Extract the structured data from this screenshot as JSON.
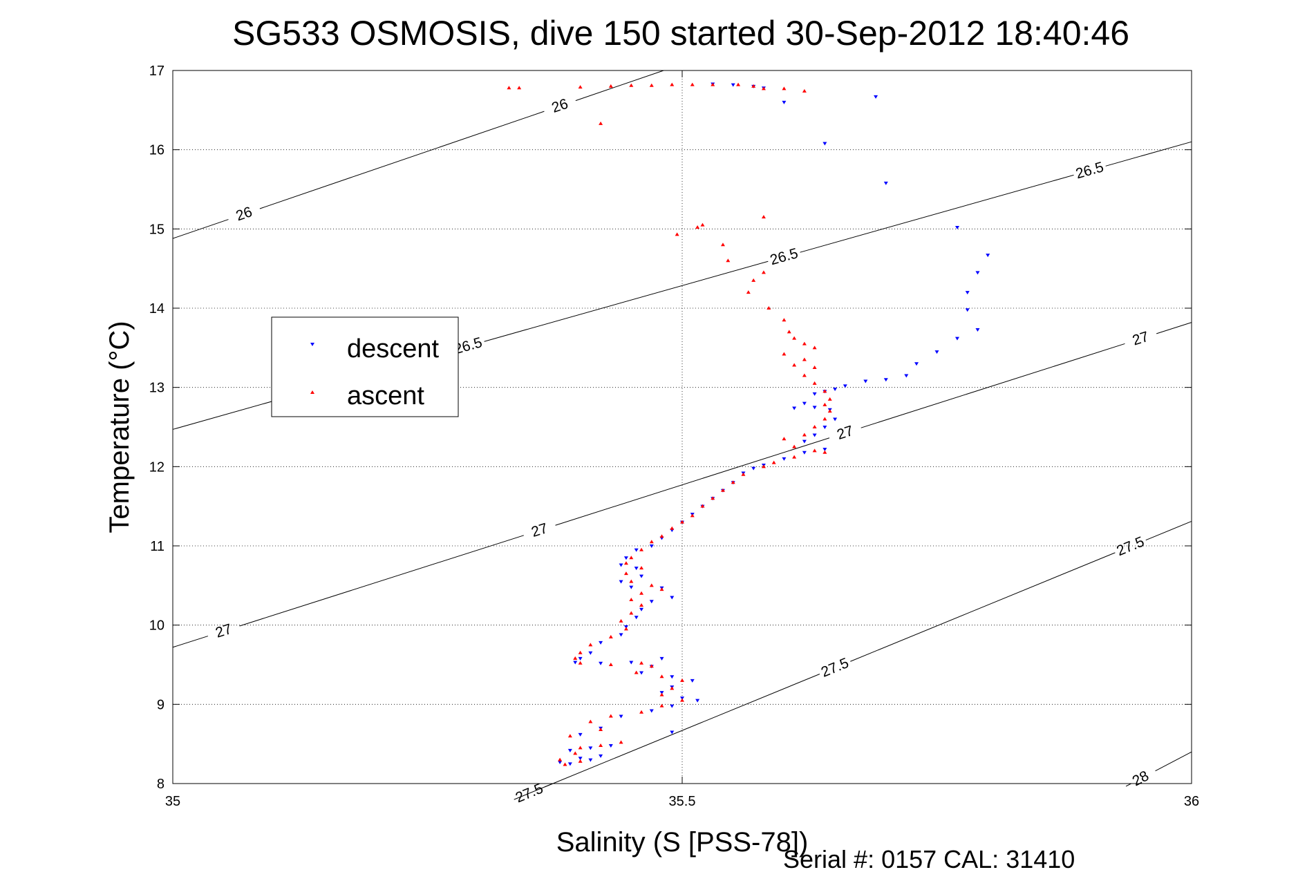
{
  "chart_data": {
    "type": "scatter",
    "title": "SG533 OSMOSIS, dive 150 started 30-Sep-2012 18:40:46",
    "xlabel": "Salinity (S [PSS-78])",
    "ylabel": "Temperature (°C)",
    "xlim": [
      35,
      36
    ],
    "ylim": [
      8,
      17
    ],
    "x_ticks": [
      "35",
      "35.5",
      "36"
    ],
    "y_ticks": [
      "8",
      "9",
      "10",
      "11",
      "12",
      "13",
      "14",
      "15",
      "16",
      "17"
    ],
    "grid": "dotted",
    "legend_position": "left",
    "footer": "Serial #: 0157  CAL: 31410",
    "colors": {
      "descent": "#0000ff",
      "ascent": "#ff0000",
      "contour": "#000000"
    },
    "contours": [
      {
        "level": "26",
        "t0": 14.88,
        "slope": 4.4,
        "labels": [
          [
            35.07,
            15.08
          ],
          [
            35.38,
            16.15
          ]
        ]
      },
      {
        "level": "26.5",
        "t0": 12.47,
        "slope": 3.63,
        "labels": [
          [
            35.29,
            13.58
          ],
          [
            35.6,
            14.68
          ],
          [
            35.9,
            15.72
          ]
        ]
      },
      {
        "level": "27",
        "t0": 9.72,
        "slope": 4.1,
        "labels": [
          [
            35.05,
            9.93
          ],
          [
            35.36,
            11.27
          ],
          [
            35.66,
            12.52
          ],
          [
            35.95,
            13.68
          ]
        ]
      },
      {
        "level": "27.5",
        "t0": 6.03,
        "slope": 5.28,
        "labels": [
          [
            35.35,
            8.38
          ],
          [
            35.65,
            9.76
          ],
          [
            35.94,
            10.92
          ]
        ]
      },
      {
        "level": "28",
        "t0": 1.65,
        "slope": 6.75,
        "labels": [
          [
            35.95,
            8.27
          ]
        ]
      }
    ],
    "series": [
      {
        "name": "descent",
        "marker": "triangle-down",
        "points": [
          [
            35.53,
            16.83
          ],
          [
            35.55,
            16.82
          ],
          [
            35.57,
            16.8
          ],
          [
            35.58,
            16.78
          ],
          [
            35.6,
            16.6
          ],
          [
            35.69,
            16.67
          ],
          [
            35.64,
            16.08
          ],
          [
            35.7,
            15.58
          ],
          [
            35.77,
            15.02
          ],
          [
            35.8,
            14.67
          ],
          [
            35.79,
            14.45
          ],
          [
            35.78,
            14.2
          ],
          [
            35.78,
            13.98
          ],
          [
            35.79,
            13.73
          ],
          [
            35.77,
            13.62
          ],
          [
            35.75,
            13.45
          ],
          [
            35.73,
            13.3
          ],
          [
            35.72,
            13.15
          ],
          [
            35.7,
            13.1
          ],
          [
            35.68,
            13.08
          ],
          [
            35.66,
            13.02
          ],
          [
            35.65,
            12.98
          ],
          [
            35.64,
            12.95
          ],
          [
            35.63,
            12.92
          ],
          [
            35.62,
            12.8
          ],
          [
            35.61,
            12.74
          ],
          [
            35.63,
            12.75
          ],
          [
            35.645,
            12.72
          ],
          [
            35.65,
            12.6
          ],
          [
            35.64,
            12.5
          ],
          [
            35.63,
            12.4
          ],
          [
            35.62,
            12.32
          ],
          [
            35.64,
            12.22
          ],
          [
            35.62,
            12.18
          ],
          [
            35.6,
            12.1
          ],
          [
            35.58,
            12.02
          ],
          [
            35.57,
            11.98
          ],
          [
            35.56,
            11.92
          ],
          [
            35.55,
            11.8
          ],
          [
            35.54,
            11.7
          ],
          [
            35.53,
            11.6
          ],
          [
            35.52,
            11.5
          ],
          [
            35.51,
            11.4
          ],
          [
            35.5,
            11.3
          ],
          [
            35.49,
            11.2
          ],
          [
            35.48,
            11.1
          ],
          [
            35.47,
            11.0
          ],
          [
            35.455,
            10.95
          ],
          [
            35.445,
            10.85
          ],
          [
            35.44,
            10.76
          ],
          [
            35.455,
            10.72
          ],
          [
            35.46,
            10.62
          ],
          [
            35.44,
            10.55
          ],
          [
            35.45,
            10.48
          ],
          [
            35.48,
            10.47
          ],
          [
            35.49,
            10.35
          ],
          [
            35.47,
            10.3
          ],
          [
            35.46,
            10.2
          ],
          [
            35.455,
            10.1
          ],
          [
            35.445,
            9.98
          ],
          [
            35.44,
            9.88
          ],
          [
            35.42,
            9.78
          ],
          [
            35.41,
            9.65
          ],
          [
            35.4,
            9.58
          ],
          [
            35.395,
            9.53
          ],
          [
            35.42,
            9.52
          ],
          [
            35.45,
            9.53
          ],
          [
            35.48,
            9.58
          ],
          [
            35.47,
            9.48
          ],
          [
            35.46,
            9.4
          ],
          [
            35.49,
            9.35
          ],
          [
            35.51,
            9.3
          ],
          [
            35.49,
            9.22
          ],
          [
            35.48,
            9.15
          ],
          [
            35.5,
            9.08
          ],
          [
            35.515,
            9.05
          ],
          [
            35.49,
            8.98
          ],
          [
            35.47,
            8.92
          ],
          [
            35.44,
            8.85
          ],
          [
            35.49,
            8.65
          ],
          [
            35.42,
            8.7
          ],
          [
            35.4,
            8.62
          ],
          [
            35.43,
            8.48
          ],
          [
            35.41,
            8.45
          ],
          [
            35.39,
            8.42
          ],
          [
            35.42,
            8.35
          ],
          [
            35.4,
            8.32
          ],
          [
            35.38,
            8.27
          ],
          [
            35.39,
            8.25
          ],
          [
            35.41,
            8.3
          ]
        ]
      },
      {
        "name": "ascent",
        "marker": "triangle-up",
        "points": [
          [
            35.33,
            16.78
          ],
          [
            35.34,
            16.78
          ],
          [
            35.4,
            16.79
          ],
          [
            35.43,
            16.8
          ],
          [
            35.45,
            16.81
          ],
          [
            35.47,
            16.81
          ],
          [
            35.49,
            16.82
          ],
          [
            35.51,
            16.82
          ],
          [
            35.53,
            16.82
          ],
          [
            35.555,
            16.82
          ],
          [
            35.57,
            16.8
          ],
          [
            35.6,
            16.77
          ],
          [
            35.62,
            16.74
          ],
          [
            35.58,
            16.77
          ],
          [
            35.42,
            16.33
          ],
          [
            35.58,
            15.15
          ],
          [
            35.52,
            15.05
          ],
          [
            35.515,
            15.02
          ],
          [
            35.495,
            14.93
          ],
          [
            35.54,
            14.8
          ],
          [
            35.545,
            14.6
          ],
          [
            35.58,
            14.45
          ],
          [
            35.57,
            14.35
          ],
          [
            35.565,
            14.2
          ],
          [
            35.585,
            14.0
          ],
          [
            35.6,
            13.85
          ],
          [
            35.605,
            13.7
          ],
          [
            35.61,
            13.62
          ],
          [
            35.62,
            13.55
          ],
          [
            35.63,
            13.5
          ],
          [
            35.6,
            13.42
          ],
          [
            35.62,
            13.35
          ],
          [
            35.61,
            13.28
          ],
          [
            35.63,
            13.25
          ],
          [
            35.62,
            13.15
          ],
          [
            35.63,
            13.05
          ],
          [
            35.64,
            12.95
          ],
          [
            35.645,
            12.85
          ],
          [
            35.64,
            12.78
          ],
          [
            35.645,
            12.7
          ],
          [
            35.64,
            12.6
          ],
          [
            35.63,
            12.5
          ],
          [
            35.62,
            12.4
          ],
          [
            35.6,
            12.35
          ],
          [
            35.61,
            12.25
          ],
          [
            35.63,
            12.2
          ],
          [
            35.64,
            12.18
          ],
          [
            35.61,
            12.12
          ],
          [
            35.59,
            12.05
          ],
          [
            35.58,
            12.0
          ],
          [
            35.56,
            11.9
          ],
          [
            35.55,
            11.8
          ],
          [
            35.54,
            11.7
          ],
          [
            35.53,
            11.6
          ],
          [
            35.52,
            11.5
          ],
          [
            35.51,
            11.38
          ],
          [
            35.5,
            11.3
          ],
          [
            35.49,
            11.22
          ],
          [
            35.48,
            11.12
          ],
          [
            35.47,
            11.05
          ],
          [
            35.46,
            10.95
          ],
          [
            35.45,
            10.85
          ],
          [
            35.445,
            10.78
          ],
          [
            35.46,
            10.72
          ],
          [
            35.445,
            10.65
          ],
          [
            35.45,
            10.55
          ],
          [
            35.47,
            10.5
          ],
          [
            35.48,
            10.45
          ],
          [
            35.46,
            10.4
          ],
          [
            35.45,
            10.32
          ],
          [
            35.46,
            10.25
          ],
          [
            35.45,
            10.15
          ],
          [
            35.44,
            10.05
          ],
          [
            35.445,
            9.95
          ],
          [
            35.43,
            9.85
          ],
          [
            35.41,
            9.75
          ],
          [
            35.4,
            9.65
          ],
          [
            35.395,
            9.58
          ],
          [
            35.4,
            9.52
          ],
          [
            35.43,
            9.5
          ],
          [
            35.46,
            9.52
          ],
          [
            35.47,
            9.48
          ],
          [
            35.455,
            9.4
          ],
          [
            35.48,
            9.35
          ],
          [
            35.5,
            9.3
          ],
          [
            35.49,
            9.2
          ],
          [
            35.48,
            9.12
          ],
          [
            35.5,
            9.05
          ],
          [
            35.48,
            8.98
          ],
          [
            35.46,
            8.9
          ],
          [
            35.43,
            8.85
          ],
          [
            35.41,
            8.78
          ],
          [
            35.42,
            8.68
          ],
          [
            35.39,
            8.6
          ],
          [
            35.44,
            8.52
          ],
          [
            35.42,
            8.48
          ],
          [
            35.4,
            8.45
          ],
          [
            35.395,
            8.38
          ],
          [
            35.38,
            8.3
          ],
          [
            35.385,
            8.24
          ],
          [
            35.4,
            8.28
          ]
        ]
      }
    ]
  }
}
